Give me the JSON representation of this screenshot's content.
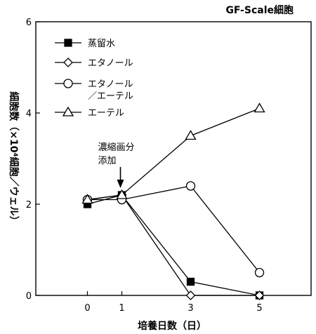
{
  "chart_data": {
    "type": "line",
    "title": "GF-Scale細胞",
    "xlabel": "培養日数（日）",
    "ylabel": "細胞数（×10⁴細胞／ウェル）",
    "x": [
      0,
      1,
      3,
      5
    ],
    "xlim": [
      -1.5,
      6.5
    ],
    "ylim": [
      0,
      6
    ],
    "yticks": [
      0,
      2,
      4,
      6
    ],
    "xticks": [
      0,
      1,
      3,
      5
    ],
    "grid": false,
    "legend_position": "top-left",
    "series": [
      {
        "name": "蒸留水",
        "marker": "filled-square",
        "values": [
          2.0,
          2.2,
          0.3,
          0.0
        ]
      },
      {
        "name": "エタノール",
        "marker": "open-diamond",
        "values": [
          2.1,
          2.2,
          0.0,
          0.0
        ]
      },
      {
        "name": "エタノール／エーテル",
        "legend_lines": [
          "エタノール",
          "／エーテル"
        ],
        "marker": "open-circle",
        "values": [
          2.1,
          2.1,
          2.4,
          0.5
        ]
      },
      {
        "name": "エーテル",
        "marker": "open-triangle",
        "values": [
          2.1,
          2.2,
          3.5,
          4.1
        ]
      }
    ],
    "annotation": {
      "lines": [
        "濃縮画分",
        "添加"
      ],
      "x": 1,
      "arrow": "down"
    }
  }
}
